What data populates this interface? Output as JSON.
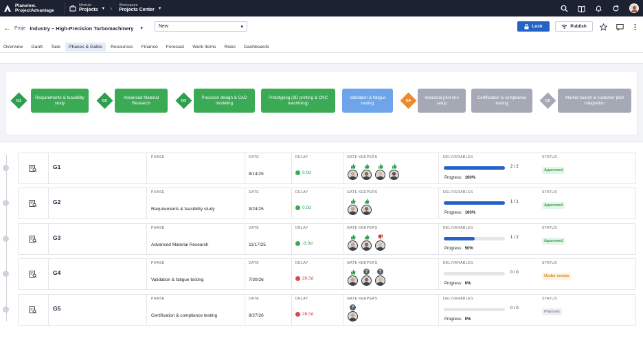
{
  "brand": {
    "line1": "Planview.",
    "line2": "ProjectAdvantage"
  },
  "module": {
    "label": "Module",
    "value": "Projects"
  },
  "workspace": {
    "label": "Workspace",
    "value": "Projects Center"
  },
  "header": {
    "breadcrumb": "Proje",
    "title": "Industry – High-Precision Turbomachinery",
    "status_value": "New",
    "lock_label": "Lock",
    "publish_label": "Publish"
  },
  "tabs": [
    "Overview",
    "Gantt",
    "Task",
    "Phases & Gates",
    "Resources",
    "Finance",
    "Forecast",
    "Work Items",
    "Risks",
    "Dashboards"
  ],
  "gate_strip": [
    {
      "kind": "gate",
      "label": "G1",
      "color": "#2e9e4f"
    },
    {
      "kind": "phase",
      "label": "Requirements & feasibility study",
      "color": "#3aaa55"
    },
    {
      "kind": "gate",
      "label": "G2",
      "color": "#2e9e4f"
    },
    {
      "kind": "phase",
      "label": "Advanced Material Research",
      "color": "#3aaa55"
    },
    {
      "kind": "gate",
      "label": "G3",
      "color": "#2e9e4f"
    },
    {
      "kind": "phase",
      "label": "Precision design & CAD modeling",
      "color": "#3aaa55"
    },
    {
      "kind": "phase",
      "label": "Prototyping (3D printing & CNC machining)",
      "color": "#3aaa55"
    },
    {
      "kind": "phase",
      "label": "Validation & fatigue testing",
      "color": "#6ea4ea"
    },
    {
      "kind": "gate",
      "label": "G4",
      "color": "#ee8a2e"
    },
    {
      "kind": "phase",
      "label": "Industrial pilot line setup",
      "color": "#a4a9b5"
    },
    {
      "kind": "phase",
      "label": "Certification & compliance testing",
      "color": "#a4a9b5"
    },
    {
      "kind": "gate",
      "label": "G5",
      "color": "#a4a9b5"
    },
    {
      "kind": "phase",
      "label": "Market launch & customer pilot integration",
      "color": "#a4a9b5"
    }
  ],
  "col_headers": {
    "phase": "PHASE",
    "date": "DATE",
    "delay": "DELAY",
    "keepers": "GATE KEEPERS",
    "deliverables": "DELIVERABLES",
    "status": "STATUS"
  },
  "progress_label": "Progress:",
  "gates": [
    {
      "name": "G1",
      "phase": "",
      "date": "8/14/25",
      "delay": "0.0d",
      "delay_color": "#3aaa55",
      "delay_text_color": "#2e9e4f",
      "keepers": [
        "up",
        "up",
        "up",
        "up"
      ],
      "deliv": "2 / 2",
      "progress": "100%",
      "pct": 1.0,
      "status": "Approved",
      "status_bg": "#e3f5e6",
      "status_fg": "#2e9e4f"
    },
    {
      "name": "G2",
      "phase": "Requirements & feasibility study",
      "date": "9/24/25",
      "delay": "0.0d",
      "delay_color": "#3aaa55",
      "delay_text_color": "#2e9e4f",
      "keepers": [
        "up",
        "up"
      ],
      "deliv": "1 / 1",
      "progress": "100%",
      "pct": 1.0,
      "status": "Approved",
      "status_bg": "#e3f5e6",
      "status_fg": "#2e9e4f"
    },
    {
      "name": "G3",
      "phase": "Advanced Material Research",
      "date": "11/17/25",
      "delay": "-3.0d",
      "delay_color": "#3aaa55",
      "delay_text_color": "#2e9e4f",
      "keepers": [
        "up",
        "up",
        "down"
      ],
      "deliv": "1 / 2",
      "progress": "50%",
      "pct": 0.5,
      "status": "Approved",
      "status_bg": "#e3f5e6",
      "status_fg": "#2e9e4f"
    },
    {
      "name": "G4",
      "phase": "Validation & fatigue testing",
      "date": "7/30/26",
      "delay": "26.0d",
      "delay_color": "#e04646",
      "delay_text_color": "#d03a3a",
      "keepers": [
        "up",
        "q",
        "q"
      ],
      "deliv": "0 / 0",
      "progress": "0%",
      "pct": 0,
      "status": "Under review",
      "status_bg": "#fdf0dc",
      "status_fg": "#d98716"
    },
    {
      "name": "G5",
      "phase": "Certification & compliance testing",
      "date": "8/27/26",
      "delay": "26.0d",
      "delay_color": "#e04646",
      "delay_text_color": "#d03a3a",
      "keepers": [
        "q"
      ],
      "deliv": "0 / 0",
      "progress": "0%",
      "pct": 0,
      "status": "Planned",
      "status_bg": "#eceef2",
      "status_fg": "#8a8f9c"
    }
  ]
}
